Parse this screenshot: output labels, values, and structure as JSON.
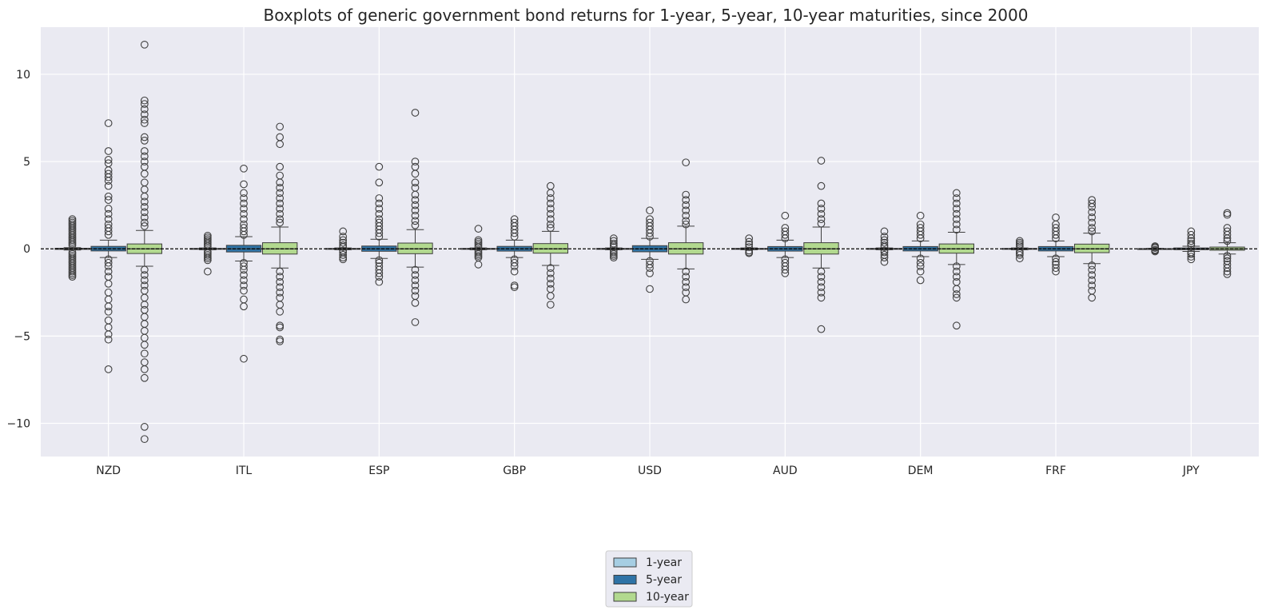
{
  "chart_data": {
    "type": "boxplot",
    "title": "Boxplots of generic government bond returns for 1-year, 5-year, 10-year maturities, since 2000",
    "xlabel": "",
    "ylabel": "",
    "ylim": [
      -11.9,
      12.7
    ],
    "yticks": [
      -10,
      -5,
      0,
      5,
      10
    ],
    "ytick_labels": [
      "−10",
      "−5",
      "0",
      "5",
      "10"
    ],
    "grid": true,
    "background": "#eaeaf2",
    "reference_line": 0,
    "legend_position": "bottom-center",
    "categories": [
      "NZD",
      "ITL",
      "ESP",
      "GBP",
      "USD",
      "AUD",
      "DEM",
      "FRF",
      "JPY"
    ],
    "series": [
      {
        "name": "1-year",
        "color": "#a6cee3",
        "boxes": [
          {
            "q1": -0.03,
            "med": 0.0,
            "q3": 0.03,
            "wlo": -0.07,
            "whi": 0.07,
            "outliers": [
              1.7,
              1.6,
              1.5,
              1.4,
              1.3,
              1.2,
              1.1,
              1.0,
              0.9,
              0.8,
              0.7,
              0.6,
              0.5,
              0.4,
              0.3,
              0.2,
              -0.2,
              -0.3,
              -0.4,
              -0.5,
              -0.6,
              -0.7,
              -0.8,
              -0.9,
              -1.0,
              -1.1,
              -1.2,
              -1.3,
              -1.4,
              -1.5,
              -1.6
            ]
          },
          {
            "q1": -0.02,
            "med": 0.0,
            "q3": 0.02,
            "wlo": -0.05,
            "whi": 0.05,
            "outliers": [
              0.75,
              0.65,
              0.55,
              0.45,
              0.35,
              0.25,
              0.15,
              -0.15,
              -0.25,
              -0.35,
              -0.45,
              -0.55,
              -0.65,
              -1.3
            ]
          },
          {
            "q1": -0.02,
            "med": 0.0,
            "q3": 0.02,
            "wlo": -0.05,
            "whi": 0.05,
            "outliers": [
              1.0,
              0.7,
              0.5,
              0.35,
              0.2,
              0.1,
              -0.1,
              -0.2,
              -0.35,
              -0.5,
              -0.6
            ]
          },
          {
            "q1": -0.02,
            "med": 0.0,
            "q3": 0.02,
            "wlo": -0.05,
            "whi": 0.05,
            "outliers": [
              1.15,
              0.5,
              0.4,
              0.3,
              0.2,
              0.1,
              -0.1,
              -0.2,
              -0.3,
              -0.4,
              -0.5,
              -0.9
            ]
          },
          {
            "q1": -0.02,
            "med": 0.0,
            "q3": 0.02,
            "wlo": -0.05,
            "whi": 0.05,
            "outliers": [
              0.6,
              0.45,
              0.3,
              0.2,
              0.1,
              -0.1,
              -0.2,
              -0.3,
              -0.4,
              -0.5
            ]
          },
          {
            "q1": -0.02,
            "med": 0.0,
            "q3": 0.02,
            "wlo": -0.05,
            "whi": 0.05,
            "outliers": [
              0.6,
              0.4,
              0.25,
              0.1,
              -0.1,
              -0.2,
              -0.25
            ]
          },
          {
            "q1": -0.02,
            "med": 0.0,
            "q3": 0.02,
            "wlo": -0.05,
            "whi": 0.05,
            "outliers": [
              1.0,
              0.7,
              0.5,
              0.35,
              0.2,
              0.1,
              -0.1,
              -0.2,
              -0.35,
              -0.5,
              -0.75
            ]
          },
          {
            "q1": -0.02,
            "med": 0.0,
            "q3": 0.02,
            "wlo": -0.05,
            "whi": 0.05,
            "outliers": [
              0.45,
              0.35,
              0.25,
              0.15,
              -0.15,
              -0.25,
              -0.35,
              -0.55
            ]
          },
          {
            "q1": -0.01,
            "med": 0.0,
            "q3": 0.01,
            "wlo": -0.03,
            "whi": 0.03,
            "outliers": [
              0.15,
              0.1,
              0.05,
              -0.05,
              -0.1,
              -0.15
            ]
          }
        ]
      },
      {
        "name": "5-year",
        "color": "#2f73a6",
        "boxes": [
          {
            "q1": -0.12,
            "med": 0.0,
            "q3": 0.14,
            "wlo": -0.5,
            "whi": 0.5,
            "outliers": [
              7.2,
              5.6,
              5.1,
              4.9,
              4.5,
              4.3,
              4.1,
              3.9,
              3.6,
              3.0,
              2.8,
              2.3,
              2.0,
              1.7,
              1.4,
              1.2,
              1.0,
              0.8,
              -0.6,
              -0.8,
              -1.0,
              -1.3,
              -1.6,
              -2.0,
              -2.5,
              -2.9,
              -3.3,
              -3.6,
              -4.1,
              -4.5,
              -4.9,
              -5.2,
              -6.9
            ]
          },
          {
            "q1": -0.18,
            "med": 0.0,
            "q3": 0.2,
            "wlo": -0.7,
            "whi": 0.7,
            "outliers": [
              4.6,
              3.7,
              3.2,
              2.9,
              2.6,
              2.3,
              2.0,
              1.7,
              1.4,
              1.2,
              1.0,
              0.8,
              -0.8,
              -1.0,
              -1.2,
              -1.5,
              -1.8,
              -2.1,
              -2.4,
              -2.9,
              -3.3,
              -6.3
            ]
          },
          {
            "q1": -0.14,
            "med": 0.0,
            "q3": 0.16,
            "wlo": -0.55,
            "whi": 0.55,
            "outliers": [
              4.7,
              3.8,
              2.9,
              2.6,
              2.3,
              2.0,
              1.7,
              1.5,
              1.3,
              1.1,
              0.9,
              0.7,
              -0.65,
              -0.8,
              -1.0,
              -1.2,
              -1.4,
              -1.6,
              -1.9
            ]
          },
          {
            "q1": -0.13,
            "med": 0.0,
            "q3": 0.14,
            "wlo": -0.5,
            "whi": 0.5,
            "outliers": [
              1.7,
              1.5,
              1.3,
              1.1,
              0.9,
              0.7,
              -0.6,
              -0.8,
              -1.0,
              -1.3,
              -2.1,
              -2.2
            ]
          },
          {
            "q1": -0.17,
            "med": 0.0,
            "q3": 0.18,
            "wlo": -0.6,
            "whi": 0.6,
            "outliers": [
              2.2,
              1.7,
              1.5,
              1.3,
              1.1,
              0.9,
              0.7,
              -0.7,
              -0.9,
              -1.1,
              -1.4,
              -2.3
            ]
          },
          {
            "q1": -0.13,
            "med": 0.0,
            "q3": 0.13,
            "wlo": -0.5,
            "whi": 0.5,
            "outliers": [
              1.9,
              1.2,
              1.0,
              0.8,
              0.6,
              -0.6,
              -0.8,
              -1.0,
              -1.2,
              -1.4
            ]
          },
          {
            "q1": -0.12,
            "med": 0.0,
            "q3": 0.13,
            "wlo": -0.45,
            "whi": 0.45,
            "outliers": [
              1.9,
              1.4,
              1.2,
              1.0,
              0.8,
              0.6,
              -0.55,
              -0.8,
              -1.0,
              -1.3,
              -1.8
            ]
          },
          {
            "q1": -0.12,
            "med": 0.0,
            "q3": 0.13,
            "wlo": -0.45,
            "whi": 0.45,
            "outliers": [
              1.8,
              1.4,
              1.2,
              1.0,
              0.8,
              0.6,
              -0.55,
              -0.75,
              -0.9,
              -1.1,
              -1.3
            ]
          },
          {
            "q1": -0.05,
            "med": 0.0,
            "q3": 0.05,
            "wlo": -0.15,
            "whi": 0.15,
            "outliers": [
              1.0,
              0.8,
              0.6,
              0.45,
              0.3,
              0.2,
              -0.2,
              -0.3,
              -0.45,
              -0.6
            ]
          }
        ]
      },
      {
        "name": "10-year",
        "color": "#b2d98f",
        "boxes": [
          {
            "q1": -0.27,
            "med": 0.0,
            "q3": 0.28,
            "wlo": -1.0,
            "whi": 1.05,
            "outliers": [
              11.7,
              8.5,
              8.3,
              8.0,
              7.7,
              7.4,
              7.2,
              6.4,
              6.2,
              5.6,
              5.3,
              5.0,
              4.7,
              4.3,
              3.8,
              3.4,
              3.0,
              2.7,
              2.4,
              2.1,
              1.8,
              1.5,
              1.3,
              -1.2,
              -1.5,
              -1.8,
              -2.1,
              -2.4,
              -2.8,
              -3.2,
              -3.5,
              -3.9,
              -4.3,
              -4.7,
              -5.1,
              -5.5,
              -6.0,
              -6.5,
              -6.9,
              -7.4,
              -10.2,
              -10.9
            ]
          },
          {
            "q1": -0.3,
            "med": 0.0,
            "q3": 0.35,
            "wlo": -1.1,
            "whi": 1.25,
            "outliers": [
              7.0,
              6.4,
              6.0,
              4.7,
              4.2,
              3.8,
              3.5,
              3.2,
              2.9,
              2.6,
              2.3,
              2.0,
              1.7,
              1.5,
              -1.3,
              -1.6,
              -1.9,
              -2.2,
              -2.5,
              -2.8,
              -3.2,
              -3.6,
              -4.4,
              -4.5,
              -5.2,
              -5.3
            ]
          },
          {
            "q1": -0.28,
            "med": 0.0,
            "q3": 0.33,
            "wlo": -1.05,
            "whi": 1.1,
            "outliers": [
              7.8,
              5.0,
              4.7,
              4.3,
              3.8,
              3.5,
              3.1,
              2.8,
              2.5,
              2.2,
              1.9,
              1.6,
              1.35,
              -1.2,
              -1.5,
              -1.8,
              -2.1,
              -2.4,
              -2.7,
              -3.1,
              -4.2
            ]
          },
          {
            "q1": -0.25,
            "med": 0.0,
            "q3": 0.3,
            "wlo": -0.95,
            "whi": 1.0,
            "outliers": [
              3.6,
              3.2,
              2.9,
              2.6,
              2.3,
              2.0,
              1.7,
              1.4,
              1.2,
              -1.1,
              -1.4,
              -1.7,
              -2.0,
              -2.3,
              -2.7,
              -3.2
            ]
          },
          {
            "q1": -0.3,
            "med": 0.0,
            "q3": 0.35,
            "wlo": -1.15,
            "whi": 1.3,
            "outliers": [
              4.95,
              3.1,
              2.8,
              2.5,
              2.2,
              1.9,
              1.6,
              1.4,
              -1.3,
              -1.6,
              -1.9,
              -2.2,
              -2.5,
              -2.9
            ]
          },
          {
            "q1": -0.3,
            "med": 0.0,
            "q3": 0.35,
            "wlo": -1.1,
            "whi": 1.25,
            "outliers": [
              5.05,
              3.6,
              2.6,
              2.3,
              2.0,
              1.7,
              1.45,
              -1.3,
              -1.6,
              -1.9,
              -2.2,
              -2.5,
              -2.8,
              -4.6
            ]
          },
          {
            "q1": -0.25,
            "med": 0.0,
            "q3": 0.28,
            "wlo": -0.9,
            "whi": 0.95,
            "outliers": [
              3.2,
              2.9,
              2.6,
              2.3,
              2.0,
              1.7,
              1.4,
              1.1,
              -1.0,
              -1.3,
              -1.6,
              -1.9,
              -2.3,
              -2.6,
              -2.8,
              -4.4
            ]
          },
          {
            "q1": -0.22,
            "med": 0.0,
            "q3": 0.27,
            "wlo": -0.85,
            "whi": 0.9,
            "outliers": [
              2.8,
              2.6,
              2.4,
              2.1,
              1.8,
              1.5,
              1.2,
              1.0,
              -0.95,
              -1.2,
              -1.5,
              -1.8,
              -2.1,
              -2.4,
              -2.8
            ]
          },
          {
            "q1": -0.08,
            "med": 0.0,
            "q3": 0.1,
            "wlo": -0.3,
            "whi": 0.35,
            "outliers": [
              2.05,
              1.95,
              1.2,
              1.0,
              0.8,
              0.6,
              0.45,
              -0.4,
              -0.55,
              -0.7,
              -0.9,
              -1.1,
              -1.3,
              -1.45
            ]
          }
        ]
      }
    ]
  }
}
